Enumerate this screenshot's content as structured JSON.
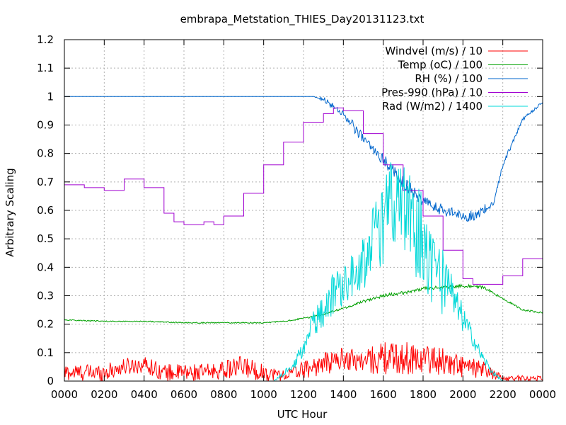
{
  "chart_data": {
    "type": "line",
    "title": "embrapa_Metstation_THIES_Day20131123.txt",
    "xlabel": "UTC Hour",
    "ylabel": "Arbitrary Scaling",
    "xlim": [
      0,
      2400
    ],
    "ylim": [
      0,
      1.2
    ],
    "x_tick_labels": [
      "0000",
      "0200",
      "0400",
      "0600",
      "0800",
      "1000",
      "1200",
      "1400",
      "1600",
      "1800",
      "2000",
      "2200",
      "0000"
    ],
    "y_tick_labels": [
      "0",
      "0.1",
      "0.2",
      "0.3",
      "0.4",
      "0.5",
      "0.6",
      "0.7",
      "0.8",
      "0.9",
      "1",
      "1.1",
      "1.2"
    ],
    "grid": true,
    "legend_position": "top-right",
    "series": [
      {
        "name": "Windvel (m/s) / 10",
        "color": "#ff0000",
        "style": "noisy",
        "x": [
          0,
          200,
          300,
          400,
          500,
          600,
          700,
          800,
          900,
          1000,
          1100,
          1200,
          1300,
          1400,
          1500,
          1600,
          1700,
          1800,
          1900,
          2000,
          2100,
          2200,
          2300,
          2400
        ],
        "y": [
          0.03,
          0.03,
          0.05,
          0.06,
          0.03,
          0.03,
          0.03,
          0.04,
          0.05,
          0.03,
          0.02,
          0.04,
          0.06,
          0.08,
          0.07,
          0.08,
          0.08,
          0.08,
          0.07,
          0.05,
          0.04,
          0.01,
          0.01,
          0.01
        ],
        "amp": [
          0.03,
          0.03,
          0.03,
          0.03,
          0.03,
          0.03,
          0.03,
          0.03,
          0.04,
          0.03,
          0.02,
          0.03,
          0.04,
          0.04,
          0.04,
          0.06,
          0.06,
          0.05,
          0.05,
          0.04,
          0.03,
          0.01,
          0.01,
          0.01
        ]
      },
      {
        "name": "Temp (oC) / 100",
        "color": "#00a000",
        "style": "noisy",
        "x": [
          0,
          200,
          400,
          600,
          800,
          1000,
          1100,
          1200,
          1300,
          1400,
          1500,
          1600,
          1700,
          1800,
          1900,
          2000,
          2100,
          2200,
          2300,
          2400
        ],
        "y": [
          0.215,
          0.21,
          0.21,
          0.205,
          0.205,
          0.205,
          0.21,
          0.22,
          0.235,
          0.255,
          0.28,
          0.3,
          0.31,
          0.325,
          0.33,
          0.335,
          0.33,
          0.29,
          0.25,
          0.24
        ],
        "amp": [
          0.002,
          0.002,
          0.002,
          0.002,
          0.002,
          0.002,
          0.002,
          0.003,
          0.003,
          0.004,
          0.005,
          0.006,
          0.006,
          0.006,
          0.006,
          0.006,
          0.005,
          0.004,
          0.003,
          0.003
        ]
      },
      {
        "name": "RH (%) / 100",
        "color": "#0066cc",
        "style": "noisy",
        "x": [
          0,
          1250,
          1300,
          1400,
          1500,
          1600,
          1700,
          1800,
          1900,
          2000,
          2050,
          2100,
          2150,
          2200,
          2300,
          2400
        ],
        "y": [
          1.0,
          1.0,
          0.99,
          0.94,
          0.85,
          0.78,
          0.7,
          0.63,
          0.6,
          0.58,
          0.58,
          0.6,
          0.62,
          0.76,
          0.92,
          0.98
        ],
        "amp": [
          0.0,
          0.0,
          0.01,
          0.015,
          0.02,
          0.02,
          0.025,
          0.02,
          0.02,
          0.02,
          0.02,
          0.02,
          0.01,
          0.01,
          0.005,
          0.005
        ]
      },
      {
        "name": "Pres-990 (hPa) / 10",
        "color": "#a000d0",
        "style": "step",
        "x": [
          0,
          100,
          200,
          300,
          400,
          500,
          550,
          600,
          700,
          750,
          800,
          900,
          1000,
          1100,
          1200,
          1300,
          1350,
          1400,
          1500,
          1600,
          1700,
          1800,
          1900,
          2000,
          2050,
          2100,
          2200,
          2300,
          2400
        ],
        "y": [
          0.69,
          0.68,
          0.67,
          0.71,
          0.68,
          0.59,
          0.56,
          0.55,
          0.56,
          0.55,
          0.58,
          0.66,
          0.76,
          0.84,
          0.91,
          0.94,
          0.96,
          0.95,
          0.87,
          0.76,
          0.67,
          0.58,
          0.46,
          0.36,
          0.34,
          0.34,
          0.37,
          0.43,
          0.5
        ]
      },
      {
        "name": "Rad (W/m2) / 1400",
        "color": "#00d8d8",
        "style": "noisy",
        "x": [
          0,
          1050,
          1150,
          1200,
          1250,
          1300,
          1350,
          1400,
          1450,
          1500,
          1550,
          1600,
          1650,
          1700,
          1750,
          1800,
          1850,
          1900,
          1950,
          2000,
          2050,
          2100,
          2150,
          2200,
          2400
        ],
        "y": [
          0.0,
          0.0,
          0.05,
          0.12,
          0.2,
          0.25,
          0.31,
          0.35,
          0.38,
          0.42,
          0.5,
          0.55,
          0.65,
          0.6,
          0.55,
          0.5,
          0.4,
          0.35,
          0.28,
          0.22,
          0.15,
          0.08,
          0.03,
          0.0,
          0.0
        ],
        "amp": [
          0.0,
          0.0,
          0.02,
          0.03,
          0.05,
          0.06,
          0.08,
          0.08,
          0.08,
          0.1,
          0.12,
          0.14,
          0.16,
          0.18,
          0.18,
          0.16,
          0.14,
          0.12,
          0.08,
          0.05,
          0.03,
          0.02,
          0.01,
          0.0,
          0.0
        ]
      }
    ]
  }
}
